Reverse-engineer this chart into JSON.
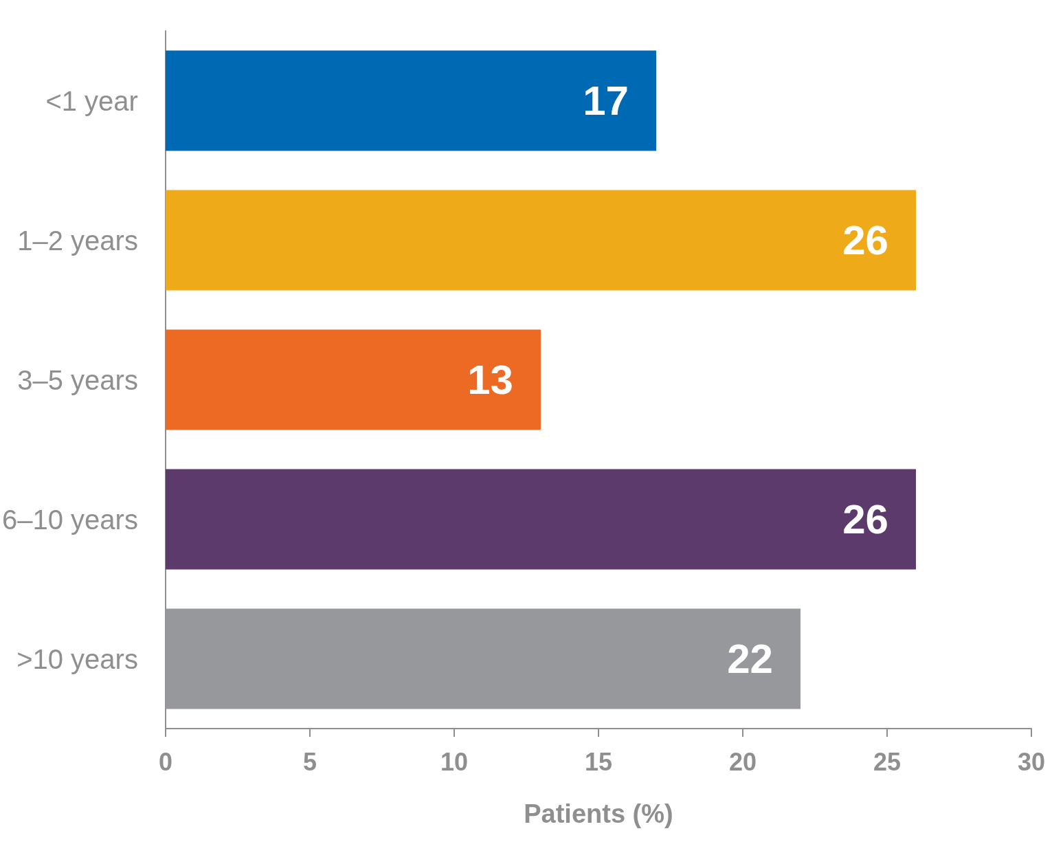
{
  "chart_data": {
    "type": "bar",
    "orientation": "horizontal",
    "xlabel": "Patients (%)",
    "categories": [
      "<1 year",
      "1–2 years",
      "3–5 years",
      "6–10 years",
      ">10 years"
    ],
    "values": [
      17,
      26,
      13,
      26,
      22
    ],
    "colors": [
      "#0069b4",
      "#eeaa19",
      "#ec6a24",
      "#5c3a6b",
      "#97989b"
    ],
    "xlim": [
      0,
      30
    ],
    "xticks": [
      0,
      5,
      10,
      15,
      20,
      25,
      30
    ],
    "grid": false,
    "data_labels": true
  }
}
